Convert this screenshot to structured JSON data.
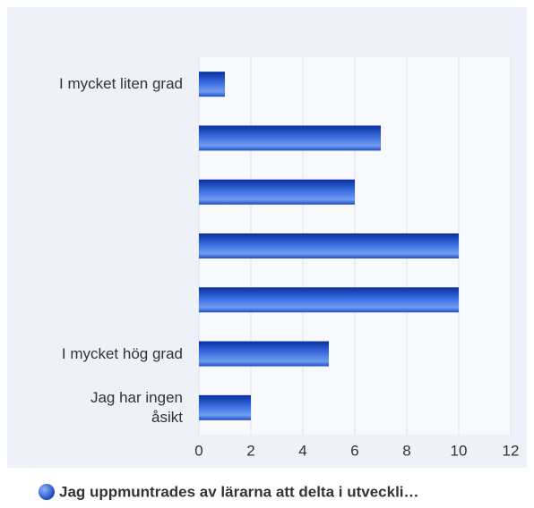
{
  "chart_data": {
    "type": "bar",
    "orientation": "horizontal",
    "categories": [
      "I mycket liten grad",
      null,
      null,
      null,
      null,
      "I mycket hög grad",
      "Jag har ingen åsikt"
    ],
    "series": [
      {
        "name": "Jag uppmuntrades av lärarna att delta i utveckli…",
        "color": "#1f4fc4",
        "values": [
          1,
          7,
          6,
          10,
          10,
          5,
          2
        ]
      }
    ],
    "xlim": [
      0,
      12
    ],
    "xticks": [
      0,
      2,
      4,
      6,
      8,
      10,
      12
    ],
    "grid": true,
    "legend": "bottom"
  }
}
